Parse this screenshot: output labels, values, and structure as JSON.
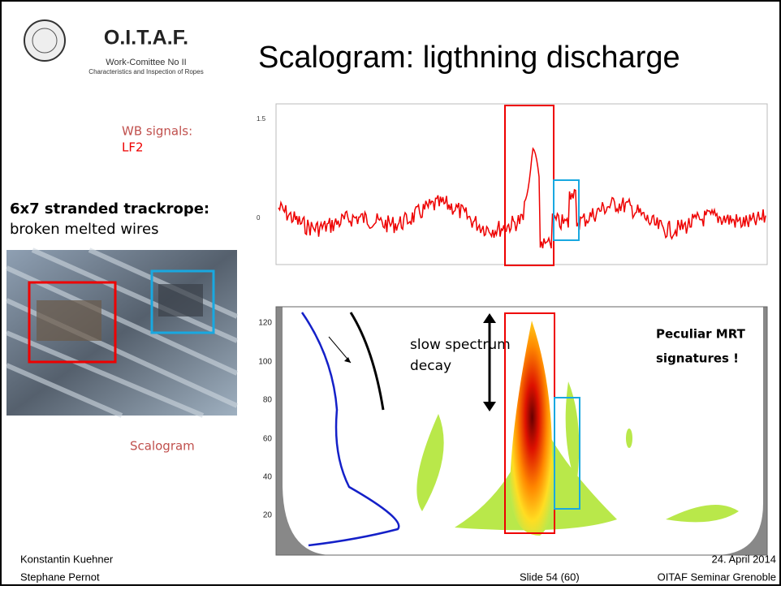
{
  "header": {
    "logo_title": "O.I.T.A.F.",
    "logo_line1": "Work-Comittee No II",
    "logo_line2": "Characteristics and Inspection of Ropes",
    "title": "Scalogram: ligthning discharge"
  },
  "left": {
    "signals_label": "WB signals:",
    "signal_name": "LF2",
    "rope_title": "6x7 stranded trackrope:",
    "rope_subtitle": "broken melted wires",
    "scalogram_label": "Scalogram"
  },
  "signal_plot": {
    "yticks": [
      "1.5",
      "0"
    ]
  },
  "scalogram_plot": {
    "yticks": [
      "120",
      "100",
      "80",
      "60",
      "40",
      "20"
    ],
    "decay_line1": "slow spectrum",
    "decay_line2": "decay",
    "note_line1": "Peculiar MRT",
    "note_line2": "signatures !"
  },
  "footer": {
    "author1": "Konstantin Kuehner",
    "author2": "Stephane Pernot",
    "slide": "Slide 54 (60)",
    "date": "24. April 2014",
    "event": "OITAF Seminar Grenoble"
  }
}
